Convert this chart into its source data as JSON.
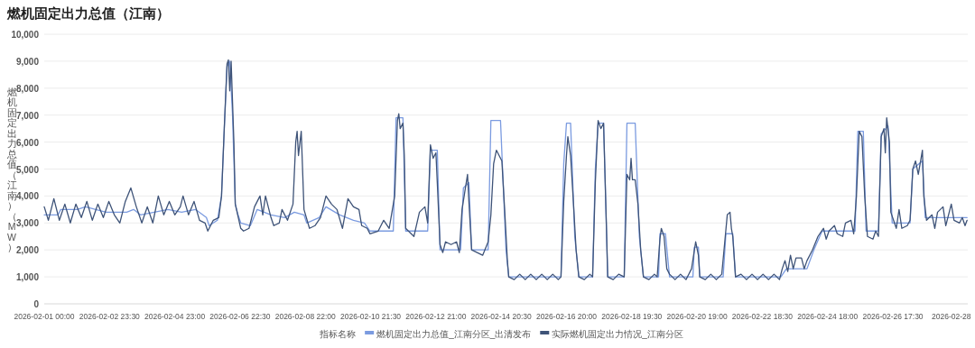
{
  "chart_data": {
    "type": "line",
    "title": "燃机固定出力总值（江南）",
    "ylabel": "燃机固定出力总值（江南）（MW）",
    "legend_title": "指标名称",
    "legend": "bottom",
    "grid": "y",
    "xlim": [
      "2026-02-01T00:00",
      "2026-03-01T00:00"
    ],
    "ylim": [
      0,
      10000
    ],
    "yticks": [
      {
        "value": 0,
        "label": "0"
      },
      {
        "value": 1000,
        "label": "1,000"
      },
      {
        "value": 2000,
        "label": "2,000"
      },
      {
        "value": 3000,
        "label": "3,000"
      },
      {
        "value": 4000,
        "label": "4,000"
      },
      {
        "value": 5000,
        "label": "5,000"
      },
      {
        "value": 6000,
        "label": "6,000"
      },
      {
        "value": 7000,
        "label": "7,000"
      },
      {
        "value": 8000,
        "label": "8,000"
      },
      {
        "value": 9000,
        "label": "9,000"
      },
      {
        "value": 10000,
        "label": "10,000"
      }
    ],
    "xticks": [
      {
        "value": "2026-02-01T00:00",
        "label": "2026-02-01 00:00"
      },
      {
        "value": "2026-02-02T23:30",
        "label": "2026-02-02 23:30"
      },
      {
        "value": "2026-02-04T23:00",
        "label": "2026-02-04 23:00"
      },
      {
        "value": "2026-02-06T22:30",
        "label": "2026-02-06 22:30"
      },
      {
        "value": "2026-02-08T22:00",
        "label": "2026-02-08 22:00"
      },
      {
        "value": "2026-02-10T21:30",
        "label": "2026-02-10 21:30"
      },
      {
        "value": "2026-02-12T21:00",
        "label": "2026-02-12 21:00"
      },
      {
        "value": "2026-02-14T20:30",
        "label": "2026-02-14 20:30"
      },
      {
        "value": "2026-02-16T20:00",
        "label": "2026-02-16 20:00"
      },
      {
        "value": "2026-02-18T19:30",
        "label": "2026-02-18 19:30"
      },
      {
        "value": "2026-02-20T19:00",
        "label": "2026-02-20 19:00"
      },
      {
        "value": "2026-02-22T18:30",
        "label": "2026-02-22 18:30"
      },
      {
        "value": "2026-02-24T18:00",
        "label": "2026-02-24 18:00"
      },
      {
        "value": "2026-02-26T17:30",
        "label": "2026-02-26 17:30"
      },
      {
        "value": "2026-02-28T12:00",
        "label": "2026-02-28"
      }
    ],
    "series": [
      {
        "name": "燃机固定出力总值_江南分区_出清发布",
        "color": "#7b9be0",
        "x": [
          "2026-02-01T00:00",
          "2026-02-01T10:00",
          "2026-02-01T12:00",
          "2026-02-02T00:00",
          "2026-02-02T06:00",
          "2026-02-02T21:00",
          "2026-02-03T12:00",
          "2026-02-03T17:00",
          "2026-02-03T22:00",
          "2026-02-04T08:00",
          "2026-02-04T18:00",
          "2026-02-05T04:00",
          "2026-02-05T14:00",
          "2026-02-05T22:00",
          "2026-02-06T00:00",
          "2026-02-06T06:00",
          "2026-02-06T09:00",
          "2026-02-06T11:00",
          "2026-02-06T13:00",
          "2026-02-06T15:00",
          "2026-02-06T17:00",
          "2026-02-06T19:00",
          "2026-02-06T21:00",
          "2026-02-06T23:00",
          "2026-02-07T06:00",
          "2026-02-07T11:00",
          "2026-02-07T21:00",
          "2026-02-08T07:00",
          "2026-02-08T14:00",
          "2026-02-08T21:00",
          "2026-02-08T23:00",
          "2026-02-09T08:00",
          "2026-02-09T13:00",
          "2026-02-09T23:00",
          "2026-02-10T09:00",
          "2026-02-10T17:00",
          "2026-02-10T21:00",
          "2026-02-11T14:00",
          "2026-02-11T16:00",
          "2026-02-11T21:00",
          "2026-02-11T23:00",
          "2026-02-12T15:00",
          "2026-02-12T17:00",
          "2026-02-12T22:00",
          "2026-02-13T00:00",
          "2026-02-13T15:00",
          "2026-02-13T17:00",
          "2026-02-13T21:00",
          "2026-02-13T23:00",
          "2026-02-14T11:00",
          "2026-02-14T13:00",
          "2026-02-14T20:00",
          "2026-02-15T00:00",
          "2026-02-15T02:00",
          "2026-02-16T16:00",
          "2026-02-16T18:00",
          "2026-02-16T20:00",
          "2026-02-16T23:00",
          "2026-02-17T02:00",
          "2026-02-17T05:00",
          "2026-02-17T15:00",
          "2026-02-17T17:00",
          "2026-02-17T19:00",
          "2026-02-17T23:00",
          "2026-02-18T02:00",
          "2026-02-18T14:00",
          "2026-02-18T16:00",
          "2026-02-18T22:00",
          "2026-02-19T01:00",
          "2026-02-19T04:00",
          "2026-02-19T15:00",
          "2026-02-19T16:00",
          "2026-02-19T20:00",
          "2026-02-19T23:00",
          "2026-02-20T16:00",
          "2026-02-20T17:00",
          "2026-02-20T20:00",
          "2026-02-20T21:00",
          "2026-02-21T14:00",
          "2026-02-21T16:00",
          "2026-02-21T21:00",
          "2026-02-21T23:00",
          "2026-02-23T08:00",
          "2026-02-23T12:00",
          "2026-02-24T03:00",
          "2026-02-24T08:00",
          "2026-02-24T14:00",
          "2026-02-25T14:00",
          "2026-02-25T16:00",
          "2026-02-25T20:00",
          "2026-02-25T22:00",
          "2026-02-26T07:00",
          "2026-02-26T09:00",
          "2026-02-26T14:00",
          "2026-02-26T17:00",
          "2026-02-27T06:00",
          "2026-02-27T08:00",
          "2026-02-27T15:00",
          "2026-02-27T17:00",
          "2026-02-28T23:30"
        ],
        "values": [
          3300,
          3300,
          3500,
          3500,
          3600,
          3400,
          3400,
          3500,
          3300,
          3400,
          3500,
          3400,
          3500,
          3200,
          2900,
          3100,
          4000,
          6500,
          8800,
          9000,
          7000,
          3700,
          3300,
          3000,
          2900,
          3500,
          3300,
          3200,
          3400,
          3300,
          3000,
          3200,
          3600,
          3300,
          3100,
          3000,
          2700,
          2700,
          6900,
          6900,
          2700,
          2700,
          5700,
          5700,
          2000,
          2000,
          4300,
          4500,
          2000,
          2000,
          6800,
          6800,
          2000,
          1000,
          1000,
          5200,
          6700,
          6700,
          2500,
          1000,
          1000,
          5000,
          6700,
          6700,
          1000,
          1000,
          6700,
          6700,
          2500,
          1000,
          1000,
          2600,
          2600,
          1000,
          1000,
          2100,
          2100,
          1000,
          1000,
          2600,
          2600,
          1000,
          1000,
          1300,
          1300,
          2000,
          2700,
          2700,
          6400,
          6400,
          2700,
          2700,
          6300,
          6600,
          3000,
          3000,
          5000,
          5300,
          3200,
          3200
        ]
      },
      {
        "name": "实际燃机固定出力情况_江南分区",
        "color": "#3e5378",
        "x": [
          "2026-02-01T00:00",
          "2026-02-01T03:00",
          "2026-02-01T07:00",
          "2026-02-01T11:00",
          "2026-02-01T15:00",
          "2026-02-01T19:00",
          "2026-02-01T23:00",
          "2026-02-02T03:00",
          "2026-02-02T07:00",
          "2026-02-02T11:00",
          "2026-02-02T15:00",
          "2026-02-02T19:00",
          "2026-02-02T23:00",
          "2026-02-03T03:00",
          "2026-02-03T07:00",
          "2026-02-03T11:00",
          "2026-02-03T15:00",
          "2026-02-03T19:00",
          "2026-02-03T23:00",
          "2026-02-04T03:00",
          "2026-02-04T07:00",
          "2026-02-04T11:00",
          "2026-02-04T15:00",
          "2026-02-04T19:00",
          "2026-02-04T23:00",
          "2026-02-05T03:00",
          "2026-02-05T05:00",
          "2026-02-05T09:00",
          "2026-02-05T13:00",
          "2026-02-05T17:00",
          "2026-02-05T21:00",
          "2026-02-05T23:00",
          "2026-02-06T03:00",
          "2026-02-06T07:00",
          "2026-02-06T09:00",
          "2026-02-06T11:00",
          "2026-02-06T13:00",
          "2026-02-06T14:00",
          "2026-02-06T15:00",
          "2026-02-06T16:00",
          "2026-02-06T18:00",
          "2026-02-06T19:00",
          "2026-02-06T23:00",
          "2026-02-07T01:00",
          "2026-02-07T05:00",
          "2026-02-07T09:00",
          "2026-02-07T13:00",
          "2026-02-07T15:00",
          "2026-02-07T17:00",
          "2026-02-07T21:00",
          "2026-02-07T23:00",
          "2026-02-08T03:00",
          "2026-02-08T05:00",
          "2026-02-08T09:00",
          "2026-02-08T13:00",
          "2026-02-08T15:00",
          "2026-02-08T16:00",
          "2026-02-08T17:00",
          "2026-02-08T19:00",
          "2026-02-08T21:00",
          "2026-02-09T01:00",
          "2026-02-09T05:00",
          "2026-02-09T09:00",
          "2026-02-09T13:00",
          "2026-02-09T17:00",
          "2026-02-09T21:00",
          "2026-02-10T01:00",
          "2026-02-10T05:00",
          "2026-02-10T09:00",
          "2026-02-10T13:00",
          "2026-02-10T15:00",
          "2026-02-10T19:00",
          "2026-02-10T21:00",
          "2026-02-11T03:00",
          "2026-02-11T07:00",
          "2026-02-11T11:00",
          "2026-02-11T15:00",
          "2026-02-11T17:00",
          "2026-02-11T18:00",
          "2026-02-11T19:00",
          "2026-02-11T21:00",
          "2026-02-11T22:00",
          "2026-02-11T23:00",
          "2026-02-12T05:00",
          "2026-02-12T09:00",
          "2026-02-12T13:00",
          "2026-02-12T15:00",
          "2026-02-12T17:00",
          "2026-02-12T19:00",
          "2026-02-12T21:00",
          "2026-02-12T22:00",
          "2026-02-13T00:00",
          "2026-02-13T02:00",
          "2026-02-13T04:00",
          "2026-02-13T08:00",
          "2026-02-13T12:00",
          "2026-02-13T14:00",
          "2026-02-13T16:00",
          "2026-02-13T20:00",
          "2026-02-13T21:00",
          "2026-02-13T23:00",
          "2026-02-14T03:00",
          "2026-02-14T07:00",
          "2026-02-14T11:00",
          "2026-02-14T13:00",
          "2026-02-14T15:00",
          "2026-02-14T17:00",
          "2026-02-14T21:00",
          "2026-02-14T23:00",
          "2026-02-15T01:00",
          "2026-02-15T02:00",
          "2026-02-15T06:00",
          "2026-02-15T10:00",
          "2026-02-15T14:00",
          "2026-02-15T18:00",
          "2026-02-15T22:00",
          "2026-02-16T02:00",
          "2026-02-16T06:00",
          "2026-02-16T10:00",
          "2026-02-16T14:00",
          "2026-02-16T16:00",
          "2026-02-16T18:00",
          "2026-02-16T20:00",
          "2026-02-16T21:00",
          "2026-02-16T23:00",
          "2026-02-17T01:00",
          "2026-02-17T03:00",
          "2026-02-17T05:00",
          "2026-02-17T09:00",
          "2026-02-17T13:00",
          "2026-02-17T15:00",
          "2026-02-17T17:00",
          "2026-02-17T19:00",
          "2026-02-17T21:00",
          "2026-02-17T23:00",
          "2026-02-18T01:00",
          "2026-02-18T02:00",
          "2026-02-18T06:00",
          "2026-02-18T10:00",
          "2026-02-18T14:00",
          "2026-02-18T16:00",
          "2026-02-18T18:00",
          "2026-02-18T19:00",
          "2026-02-18T20:00",
          "2026-02-18T22:00",
          "2026-02-19T00:00",
          "2026-02-19T02:00",
          "2026-02-19T04:00",
          "2026-02-19T08:00",
          "2026-02-19T12:00",
          "2026-02-19T14:00",
          "2026-02-19T16:00",
          "2026-02-19T17:00",
          "2026-02-19T19:00",
          "2026-02-19T21:00",
          "2026-02-19T23:00",
          "2026-02-20T03:00",
          "2026-02-20T07:00",
          "2026-02-20T11:00",
          "2026-02-20T15:00",
          "2026-02-20T18:00",
          "2026-02-20T20:00",
          "2026-02-20T21:00",
          "2026-02-21T01:00",
          "2026-02-21T05:00",
          "2026-02-21T09:00",
          "2026-02-21T13:00",
          "2026-02-21T15:00",
          "2026-02-21T17:00",
          "2026-02-21T19:00",
          "2026-02-21T20:00",
          "2026-02-21T21:00",
          "2026-02-21T23:00",
          "2026-02-22T03:00",
          "2026-02-22T07:00",
          "2026-02-22T11:00",
          "2026-02-22T15:00",
          "2026-02-22T19:00",
          "2026-02-22T23:00",
          "2026-02-23T03:00",
          "2026-02-23T07:00",
          "2026-02-23T09:00",
          "2026-02-23T11:00",
          "2026-02-23T13:00",
          "2026-02-23T15:00",
          "2026-02-23T17:00",
          "2026-02-23T19:00",
          "2026-02-23T23:00",
          "2026-02-24T01:00",
          "2026-02-24T03:00",
          "2026-02-24T07:00",
          "2026-02-24T11:00",
          "2026-02-24T15:00",
          "2026-02-24T17:00",
          "2026-02-24T19:00",
          "2026-02-24T23:00",
          "2026-02-25T01:00",
          "2026-02-25T05:00",
          "2026-02-25T07:00",
          "2026-02-25T11:00",
          "2026-02-25T13:00",
          "2026-02-25T15:00",
          "2026-02-25T17:00",
          "2026-02-25T19:00",
          "2026-02-25T21:00",
          "2026-02-25T23:00",
          "2026-02-26T03:00",
          "2026-02-26T05:00",
          "2026-02-26T07:00",
          "2026-02-26T09:00",
          "2026-02-26T11:00",
          "2026-02-26T12:00",
          "2026-02-26T13:00",
          "2026-02-26T15:00",
          "2026-02-26T16:00",
          "2026-02-26T20:00",
          "2026-02-26T22:00",
          "2026-02-27T00:00",
          "2026-02-27T04:00",
          "2026-02-27T06:00",
          "2026-02-27T08:00",
          "2026-02-27T10:00",
          "2026-02-27T12:00",
          "2026-02-27T14:00",
          "2026-02-27T15:00",
          "2026-02-27T16:00",
          "2026-02-27T18:00",
          "2026-02-27T22:00",
          "2026-02-28T00:00",
          "2026-02-28T02:00",
          "2026-02-28T06:00",
          "2026-02-28T08:00",
          "2026-02-28T12:00",
          "2026-02-28T14:00",
          "2026-02-28T18:00",
          "2026-02-28T20:00",
          "2026-02-28T22:00",
          "2026-02-28T23:30"
        ],
        "values": [
          3600,
          3100,
          3900,
          3100,
          3700,
          3000,
          3700,
          3200,
          3800,
          3100,
          3700,
          3200,
          3800,
          3300,
          3000,
          3800,
          4300,
          3600,
          3000,
          3600,
          3000,
          4000,
          3300,
          3800,
          3300,
          3600,
          4000,
          3300,
          3800,
          3100,
          3000,
          2700,
          3100,
          3200,
          4000,
          6500,
          8900,
          9050,
          7900,
          9000,
          6000,
          3700,
          2800,
          2700,
          2800,
          3600,
          4000,
          3300,
          4000,
          3200,
          2900,
          3000,
          3500,
          3100,
          3700,
          6000,
          6400,
          5500,
          6400,
          3500,
          2800,
          2900,
          3200,
          4000,
          3700,
          3500,
          2800,
          3900,
          3600,
          3500,
          2900,
          2800,
          2600,
          2700,
          3100,
          2800,
          4000,
          6800,
          7050,
          6500,
          6700,
          5500,
          2800,
          2500,
          3400,
          3600,
          3000,
          5900,
          5400,
          5600,
          4500,
          2200,
          1900,
          2300,
          2200,
          2300,
          1900,
          3500,
          4800,
          3800,
          2000,
          1900,
          1800,
          2300,
          3300,
          5200,
          5700,
          5300,
          3500,
          1600,
          1000,
          900,
          1100,
          900,
          1100,
          900,
          1100,
          900,
          1100,
          900,
          1000,
          3800,
          5500,
          6200,
          5500,
          3800,
          2000,
          1000,
          900,
          1100,
          1000,
          4500,
          6800,
          6500,
          6700,
          3000,
          1000,
          900,
          1100,
          1000,
          4800,
          4600,
          5400,
          4600,
          4600,
          3700,
          2000,
          1000,
          900,
          1100,
          1000,
          2400,
          2800,
          2500,
          1300,
          1100,
          900,
          1100,
          900,
          1300,
          2300,
          1800,
          1000,
          900,
          1100,
          900,
          1100,
          2200,
          3300,
          3400,
          2800,
          2500,
          1000,
          1100,
          900,
          1100,
          900,
          1100,
          900,
          1100,
          900,
          1300,
          1600,
          1200,
          1800,
          1300,
          1700,
          1700,
          1300,
          1600,
          2000,
          2500,
          2800,
          2400,
          2700,
          2900,
          2600,
          2500,
          3000,
          3100,
          2600,
          4000,
          6400,
          6200,
          4000,
          2500,
          2400,
          2700,
          2500,
          6200,
          6500,
          5600,
          6900,
          6000,
          3400,
          2800,
          3500,
          2800,
          2900,
          3100,
          5000,
          5300,
          4800,
          5400,
          5700,
          4000,
          3100,
          3300,
          2800,
          3400,
          3600,
          2900,
          3700,
          3100,
          3000,
          3200,
          2900,
          3100
        ]
      }
    ]
  }
}
